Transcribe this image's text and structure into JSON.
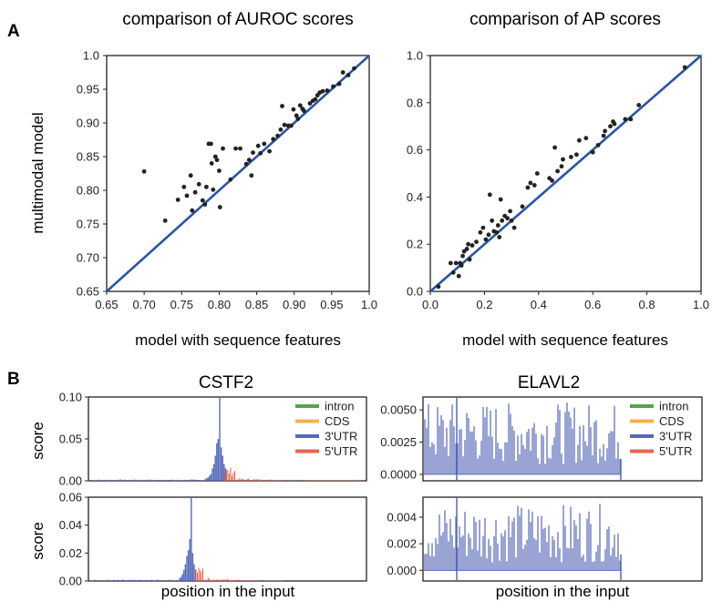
{
  "panel_labels": {
    "a": "A",
    "b": "B"
  },
  "colors": {
    "points": "#222222",
    "diagonal": "#2a55a4",
    "intron": "#59a14f",
    "CDS": "#f6b04e",
    "3UTR": "#5568b8",
    "5UTR": "#e8664a"
  },
  "chart_data": [
    {
      "type": "scatter",
      "title": "comparison of AUROC scores",
      "xlabel": "model with sequence features",
      "ylabel": "multimodal model",
      "xlim": [
        0.65,
        1.0
      ],
      "ylim": [
        0.65,
        1.0
      ],
      "xticks": [
        "0.65",
        "0.70",
        "0.75",
        "0.80",
        "0.85",
        "0.90",
        "0.95",
        "1.0"
      ],
      "yticks": [
        "0.65",
        "0.70",
        "0.75",
        "0.80",
        "0.85",
        "0.90",
        "0.95",
        "1.0"
      ],
      "diagonal": true,
      "points": [
        [
          0.7,
          0.828
        ],
        [
          0.728,
          0.755
        ],
        [
          0.745,
          0.786
        ],
        [
          0.753,
          0.805
        ],
        [
          0.757,
          0.792
        ],
        [
          0.762,
          0.822
        ],
        [
          0.764,
          0.77
        ],
        [
          0.768,
          0.797
        ],
        [
          0.773,
          0.809
        ],
        [
          0.778,
          0.785
        ],
        [
          0.781,
          0.779
        ],
        [
          0.783,
          0.805
        ],
        [
          0.786,
          0.869
        ],
        [
          0.789,
          0.869
        ],
        [
          0.79,
          0.84
        ],
        [
          0.792,
          0.801
        ],
        [
          0.795,
          0.85
        ],
        [
          0.797,
          0.845
        ],
        [
          0.8,
          0.829
        ],
        [
          0.801,
          0.775
        ],
        [
          0.805,
          0.862
        ],
        [
          0.815,
          0.816
        ],
        [
          0.822,
          0.862
        ],
        [
          0.828,
          0.862
        ],
        [
          0.836,
          0.839
        ],
        [
          0.84,
          0.845
        ],
        [
          0.843,
          0.822
        ],
        [
          0.845,
          0.856
        ],
        [
          0.852,
          0.866
        ],
        [
          0.855,
          0.855
        ],
        [
          0.86,
          0.869
        ],
        [
          0.867,
          0.858
        ],
        [
          0.872,
          0.876
        ],
        [
          0.878,
          0.881
        ],
        [
          0.882,
          0.89
        ],
        [
          0.884,
          0.925
        ],
        [
          0.887,
          0.897
        ],
        [
          0.892,
          0.896
        ],
        [
          0.896,
          0.896
        ],
        [
          0.899,
          0.92
        ],
        [
          0.903,
          0.911
        ],
        [
          0.905,
          0.906
        ],
        [
          0.908,
          0.926
        ],
        [
          0.911,
          0.921
        ],
        [
          0.913,
          0.918
        ],
        [
          0.921,
          0.929
        ],
        [
          0.925,
          0.933
        ],
        [
          0.928,
          0.935
        ],
        [
          0.931,
          0.941
        ],
        [
          0.934,
          0.945
        ],
        [
          0.938,
          0.947
        ],
        [
          0.944,
          0.948
        ],
        [
          0.952,
          0.954
        ],
        [
          0.96,
          0.958
        ],
        [
          0.965,
          0.975
        ],
        [
          0.972,
          0.971
        ],
        [
          0.98,
          0.981
        ]
      ]
    },
    {
      "type": "scatter",
      "title": "comparison of AP scores",
      "xlabel": "model with sequence features",
      "ylabel": "",
      "xlim": [
        0.0,
        1.0
      ],
      "ylim": [
        0.0,
        1.0
      ],
      "xticks": [
        "0.0",
        "0.2",
        "0.4",
        "0.6",
        "0.8",
        "1.0"
      ],
      "yticks": [
        "0.0",
        "0.2",
        "0.4",
        "0.6",
        "0.8",
        "1.0"
      ],
      "diagonal": true,
      "points": [
        [
          0.03,
          0.02
        ],
        [
          0.075,
          0.12
        ],
        [
          0.085,
          0.08
        ],
        [
          0.095,
          0.12
        ],
        [
          0.105,
          0.065
        ],
        [
          0.11,
          0.12
        ],
        [
          0.115,
          0.11
        ],
        [
          0.12,
          0.15
        ],
        [
          0.125,
          0.17
        ],
        [
          0.135,
          0.18
        ],
        [
          0.14,
          0.2
        ],
        [
          0.145,
          0.135
        ],
        [
          0.155,
          0.195
        ],
        [
          0.17,
          0.21
        ],
        [
          0.185,
          0.25
        ],
        [
          0.195,
          0.27
        ],
        [
          0.205,
          0.22
        ],
        [
          0.215,
          0.24
        ],
        [
          0.22,
          0.41
        ],
        [
          0.228,
          0.3
        ],
        [
          0.235,
          0.255
        ],
        [
          0.245,
          0.25
        ],
        [
          0.25,
          0.28
        ],
        [
          0.255,
          0.23
        ],
        [
          0.26,
          0.39
        ],
        [
          0.265,
          0.3
        ],
        [
          0.275,
          0.32
        ],
        [
          0.285,
          0.31
        ],
        [
          0.295,
          0.34
        ],
        [
          0.3,
          0.3
        ],
        [
          0.31,
          0.27
        ],
        [
          0.34,
          0.36
        ],
        [
          0.36,
          0.44
        ],
        [
          0.37,
          0.46
        ],
        [
          0.385,
          0.45
        ],
        [
          0.395,
          0.5
        ],
        [
          0.44,
          0.48
        ],
        [
          0.45,
          0.47
        ],
        [
          0.46,
          0.61
        ],
        [
          0.47,
          0.51
        ],
        [
          0.485,
          0.53
        ],
        [
          0.49,
          0.56
        ],
        [
          0.52,
          0.57
        ],
        [
          0.54,
          0.58
        ],
        [
          0.55,
          0.64
        ],
        [
          0.575,
          0.65
        ],
        [
          0.6,
          0.59
        ],
        [
          0.62,
          0.62
        ],
        [
          0.64,
          0.66
        ],
        [
          0.645,
          0.68
        ],
        [
          0.665,
          0.7
        ],
        [
          0.675,
          0.72
        ],
        [
          0.68,
          0.71
        ],
        [
          0.72,
          0.73
        ],
        [
          0.74,
          0.73
        ],
        [
          0.77,
          0.79
        ],
        [
          0.94,
          0.95
        ]
      ]
    },
    {
      "type": "bar",
      "title": "CSTF2",
      "xlabel": "",
      "ylabel": "score",
      "ylim": [
        0.0,
        0.1
      ],
      "yticks": [
        "0.00",
        "0.05",
        "0.10"
      ],
      "legend": [
        "intron",
        "CDS",
        "3'UTR",
        "5'UTR"
      ],
      "legend_position": "right"
    },
    {
      "type": "bar",
      "title": "ELAVL2",
      "xlabel": "",
      "ylabel": "",
      "ylim": [
        -0.0005,
        0.006
      ],
      "yticks": [
        "0.0000",
        "0.0025",
        "0.0050"
      ],
      "legend": [
        "intron",
        "CDS",
        "3'UTR",
        "5'UTR"
      ],
      "legend_position": "right"
    },
    {
      "type": "bar",
      "title": "",
      "xlabel": "position in the input",
      "ylabel": "score",
      "ylim": [
        0.0,
        0.06
      ],
      "yticks": [
        "0.00",
        "0.02",
        "0.04",
        "0.06"
      ]
    },
    {
      "type": "bar",
      "title": "",
      "xlabel": "position in the input",
      "ylabel": "",
      "ylim": [
        -0.0008,
        0.0055
      ],
      "yticks": [
        "0.000",
        "0.002",
        "0.004"
      ]
    }
  ]
}
